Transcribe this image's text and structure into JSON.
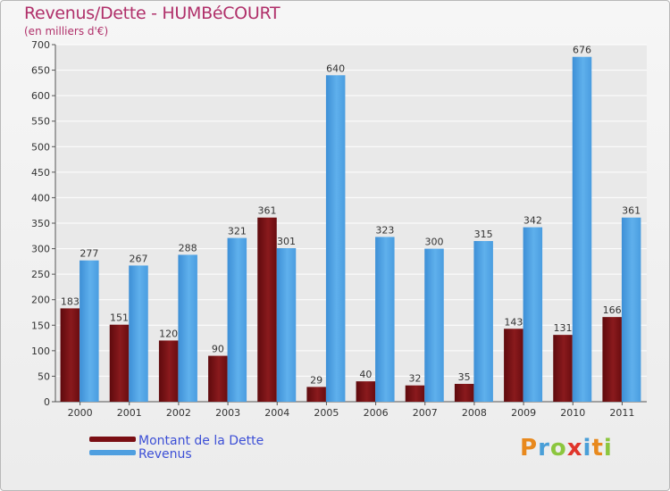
{
  "chart_data": {
    "type": "bar",
    "title": "Revenus/Dette - HUMBéCOURT",
    "subtitle": "(en milliers d'€)",
    "categories": [
      "2000",
      "2001",
      "2002",
      "2003",
      "2004",
      "2005",
      "2006",
      "2007",
      "2008",
      "2009",
      "2010",
      "2011"
    ],
    "series": [
      {
        "name": "Montant de la Dette",
        "color": "#7a0e13",
        "values": [
          183,
          151,
          120,
          90,
          361,
          29,
          40,
          32,
          35,
          143,
          131,
          166
        ]
      },
      {
        "name": "Revenus",
        "color": "#4f9fe0",
        "values": [
          277,
          267,
          288,
          321,
          301,
          640,
          323,
          300,
          315,
          342,
          676,
          361
        ]
      }
    ],
    "ylim": [
      0,
      700
    ],
    "yticks": [
      0,
      50,
      100,
      150,
      200,
      250,
      300,
      350,
      400,
      450,
      500,
      550,
      600,
      650,
      700
    ],
    "grid": true,
    "legend": "bottom-left"
  },
  "logo": {
    "text": "Proxiti",
    "colors": [
      "#e8891d",
      "#4a9fd8",
      "#8cc63e",
      "#e0352b",
      "#4a9fd8",
      "#e8891d",
      "#8cc63e"
    ]
  }
}
